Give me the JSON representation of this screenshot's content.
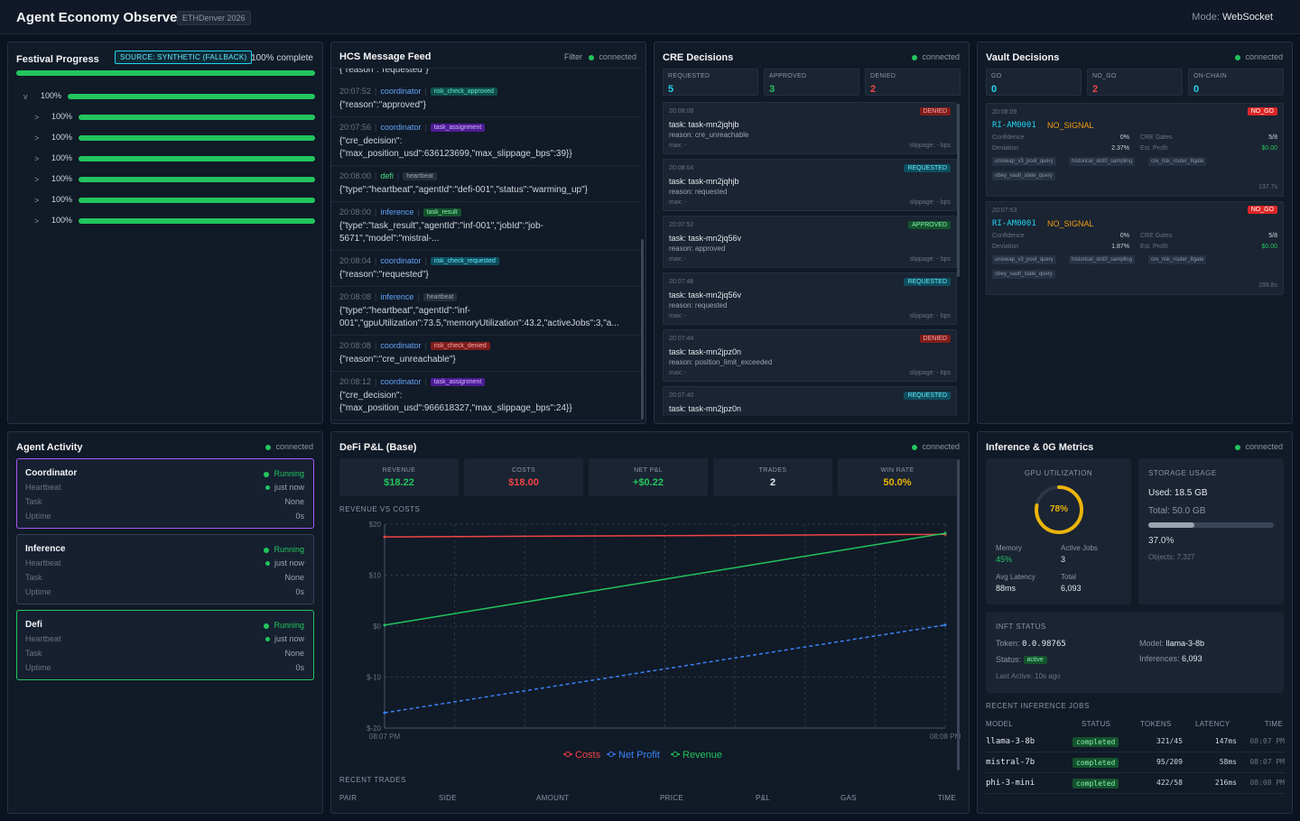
{
  "header": {
    "title": "Agent Economy Observer",
    "tag": "ETHDenver 2026",
    "mode_label": "Mode:",
    "mode_value": "WebSocket"
  },
  "colors": {
    "green": "#22c55e",
    "red": "#ef4444",
    "blue": "#3b82f6",
    "yellow": "#eab308",
    "cyan": "#22d3ee",
    "orange": "#f59e0b"
  },
  "festival": {
    "title": "Festival Progress",
    "source": "SOURCE: SYNTHETIC (FALLBACK)",
    "complete": "100% complete",
    "main_progress": 1.0,
    "rows": [
      {
        "chevron": "v",
        "pct": "100%"
      },
      {
        "chevron": ">",
        "pct": "100%"
      },
      {
        "chevron": ">",
        "pct": "100%"
      },
      {
        "chevron": ">",
        "pct": "100%"
      },
      {
        "chevron": ">",
        "pct": "100%"
      },
      {
        "chevron": ">",
        "pct": "100%"
      },
      {
        "chevron": ">",
        "pct": "100%"
      }
    ]
  },
  "hcs": {
    "title": "HCS Message Feed",
    "filter": "Filter",
    "status": "connected",
    "top_fragment": "{\"reason\":\"requested\"}",
    "items": [
      {
        "time": "20:07:52",
        "source": "coordinator",
        "tag": "risk_check_approved",
        "body": [
          "{\"reason\":\"approved\"}"
        ]
      },
      {
        "time": "20:07:56",
        "source": "coordinator",
        "tag": "task_assignment",
        "body": [
          "{\"cre_decision\":",
          "{\"max_position_usd\":636123699,\"max_slippage_bps\":39}}"
        ]
      },
      {
        "time": "20:08:00",
        "source": "defi",
        "tag": "heartbeat",
        "body": [
          "{\"type\":\"heartbeat\",\"agentId\":\"defi-001\",\"status\":\"warming_up\"}"
        ]
      },
      {
        "time": "20:08:00",
        "source": "inference",
        "tag": "task_result",
        "body": [
          "{\"type\":\"task_result\",\"agentId\":\"inf-001\",\"jobId\":\"job-",
          "5671\",\"model\":\"mistral-..."
        ]
      },
      {
        "time": "20:08:04",
        "source": "coordinator",
        "tag": "risk_check_requested",
        "body": [
          "{\"reason\":\"requested\"}"
        ]
      },
      {
        "time": "20:08:08",
        "source": "inference",
        "tag": "heartbeat",
        "body": [
          "{\"type\":\"heartbeat\",\"agentId\":\"inf-",
          "001\",\"gpuUtilization\":73.5,\"memoryUtilization\":43.2,\"activeJobs\":3,\"a..."
        ]
      },
      {
        "time": "20:08:08",
        "source": "coordinator",
        "tag": "risk_check_denied",
        "body": [
          "{\"reason\":\"cre_unreachable\"}"
        ]
      },
      {
        "time": "20:08:12",
        "source": "coordinator",
        "tag": "task_assignment",
        "body": [
          "{\"cre_decision\":",
          "{\"max_position_usd\":966618327,\"max_slippage_bps\":24}}"
        ]
      }
    ]
  },
  "cre": {
    "title": "CRE Decisions",
    "status": "connected",
    "stats": [
      {
        "label": "REQUESTED",
        "value": "5"
      },
      {
        "label": "APPROVED",
        "value": "3"
      },
      {
        "label": "DENIED",
        "value": "2"
      }
    ],
    "decisions": [
      {
        "time": "20:08:08",
        "task": "task: task-mn2jqhjb",
        "reason": "reason: cre_unreachable",
        "max": "max: -",
        "slippage": "slippage: - bps",
        "status": "DENIED"
      },
      {
        "time": "20:08:04",
        "task": "task: task-mn2jqhjb",
        "reason": "reason: requested",
        "max": "max: -",
        "slippage": "slippage: - bps",
        "status": "REQUESTED"
      },
      {
        "time": "20:07:52",
        "task": "task: task-mn2jq56v",
        "reason": "reason: approved",
        "max": "max: -",
        "slippage": "slippage: - bps",
        "status": "APPROVED"
      },
      {
        "time": "20:07:48",
        "task": "task: task-mn2jq56v",
        "reason": "reason: requested",
        "max": "max: -",
        "slippage": "slippage: - bps",
        "status": "REQUESTED"
      },
      {
        "time": "20:07:44",
        "task": "task: task-mn2jpz0n",
        "reason": "reason: position_limit_exceeded",
        "max": "max: -",
        "slippage": "slippage: - bps",
        "status": "DENIED"
      },
      {
        "time": "20:07:40",
        "task": "task: task-mn2jpz0n",
        "reason": "",
        "max": "",
        "slippage": "",
        "status": "REQUESTED"
      }
    ]
  },
  "vault": {
    "title": "Vault Decisions",
    "status": "connected",
    "stats": [
      {
        "label": "GO",
        "value": "0"
      },
      {
        "label": "NO_GO",
        "value": "2"
      },
      {
        "label": "ON-CHAIN",
        "value": "0"
      }
    ],
    "decisions": [
      {
        "time": "20:08:09",
        "badge": "NO_GO",
        "id": "RI-AM0001",
        "signal": "NO_SIGNAL",
        "confidence_label": "Confidence",
        "confidence": "0%",
        "deviation_label": "Deviation",
        "deviation": "2.37%",
        "gates_label": "CRE Gates",
        "gates": "5/8",
        "profit_label": "Est. Profit",
        "profit": "$0.00",
        "chips": [
          "uniswap_v3_pool_query",
          "historical_slot0_sampling",
          "cre_risk_router_8gate",
          "obey_vault_state_query"
        ],
        "age": "137.7s"
      },
      {
        "time": "20:07:53",
        "badge": "NO_GO",
        "id": "RI-AM0001",
        "signal": "NO_SIGNAL",
        "confidence_label": "Confidence",
        "confidence": "0%",
        "deviation_label": "Deviation",
        "deviation": "1.87%",
        "gates_label": "CRE Gates",
        "gates": "5/8",
        "profit_label": "Est. Profit",
        "profit": "$0.00",
        "chips": [
          "uniswap_v3_pool_query",
          "historical_slot0_sampling",
          "cre_risk_router_8gate",
          "obey_vault_state_query"
        ],
        "age": "199.8s"
      }
    ]
  },
  "agents": {
    "title": "Agent Activity",
    "status": "connected",
    "cards": [
      {
        "name": "Coordinator",
        "state": "Running",
        "heartbeat_label": "Heartbeat",
        "heartbeat": "just now",
        "task_label": "Task",
        "task": "None",
        "uptime_label": "Uptime",
        "uptime": "0s",
        "border": "#a855f7"
      },
      {
        "name": "Inference",
        "state": "Running",
        "heartbeat_label": "Heartbeat",
        "heartbeat": "just now",
        "task_label": "Task",
        "task": "None",
        "uptime_label": "Uptime",
        "uptime": "0s",
        "border": "#334155"
      },
      {
        "name": "Defi",
        "state": "Running",
        "heartbeat_label": "Heartbeat",
        "heartbeat": "just now",
        "task_label": "Task",
        "task": "None",
        "uptime_label": "Uptime",
        "uptime": "0s",
        "border": "#22c55e"
      }
    ]
  },
  "defi": {
    "title": "DeFi P&L (Base)",
    "status": "connected",
    "stats": [
      {
        "label": "REVENUE",
        "value": "$18.22",
        "color": "#22c55e"
      },
      {
        "label": "COSTS",
        "value": "$18.00",
        "color": "#ef4444"
      },
      {
        "label": "NET P&L",
        "value": "+$0.22",
        "color": "#22c55e"
      },
      {
        "label": "TRADES",
        "value": "2",
        "color": "#e5e7eb"
      },
      {
        "label": "WIN RATE",
        "value": "50.0%",
        "color": "#eab308"
      }
    ],
    "chart_title": "REVENUE VS COSTS",
    "recent_title": "RECENT TRADES",
    "trade_columns": [
      "PAIR",
      "SIDE",
      "AMOUNT",
      "PRICE",
      "P&L",
      "GAS",
      "TIME"
    ]
  },
  "chart_data": {
    "type": "line",
    "x": [
      "08:07 PM",
      "08:08 PM"
    ],
    "x_tick_labels": [
      "08:07 PM",
      "08:08 PM"
    ],
    "y_ticks": [
      20,
      10,
      0,
      -10,
      -20
    ],
    "y_tick_labels": [
      "$20",
      "$10",
      "$0",
      "$-10",
      "$-20"
    ],
    "ylim": [
      -20,
      20
    ],
    "grid": true,
    "legend_position": "bottom",
    "series": [
      {
        "name": "Costs",
        "values": [
          17.5,
          18.0
        ],
        "color": "#ef4444",
        "dash": false
      },
      {
        "name": "Net Profit",
        "values": [
          -17.0,
          0.22
        ],
        "color": "#3b82f6",
        "dash": true
      },
      {
        "name": "Revenue",
        "values": [
          0.2,
          18.22
        ],
        "color": "#22c55e",
        "dash": false
      }
    ]
  },
  "inference": {
    "title": "Inference & 0G Metrics",
    "status": "connected",
    "gpu_title": "GPU UTILIZATION",
    "gpu_value": "78%",
    "gpu_fraction": 0.78,
    "memory_label": "Memory",
    "memory": "45%",
    "active_jobs_label": "Active Jobs",
    "active_jobs": "3",
    "avg_latency_label": "Avg Latency",
    "avg_latency": "88ms",
    "total_label": "Total",
    "total": "6,093",
    "storage_title": "STORAGE USAGE",
    "used": "Used: 18.5 GB",
    "total_storage": "Total: 50.0 GB",
    "storage_fraction": 0.37,
    "storage_pct": "37.0%",
    "objects": "Objects: 7,327",
    "inft_title": "INFT STATUS",
    "token_label": "Token:",
    "token": "0.0.98765",
    "model_label": "Model:",
    "model": "llama-3-8b",
    "status_label": "Status:",
    "status_value": "active",
    "inferences_label": "Inferences:",
    "inferences": "6,093",
    "last_active": "Last Active: 10s ago",
    "jobs_title": "RECENT INFERENCE JOBS",
    "jobs_columns": [
      "MODEL",
      "STATUS",
      "TOKENS",
      "LATENCY",
      "TIME"
    ],
    "jobs": [
      {
        "model": "llama-3-8b",
        "status": "completed",
        "tokens": "321/45",
        "latency": "147ms",
        "time": "08:07 PM"
      },
      {
        "model": "mistral-7b",
        "status": "completed",
        "tokens": "95/209",
        "latency": "58ms",
        "time": "08:07 PM"
      },
      {
        "model": "phi-3-mini",
        "status": "completed",
        "tokens": "422/58",
        "latency": "216ms",
        "time": "08:08 PM"
      }
    ]
  }
}
